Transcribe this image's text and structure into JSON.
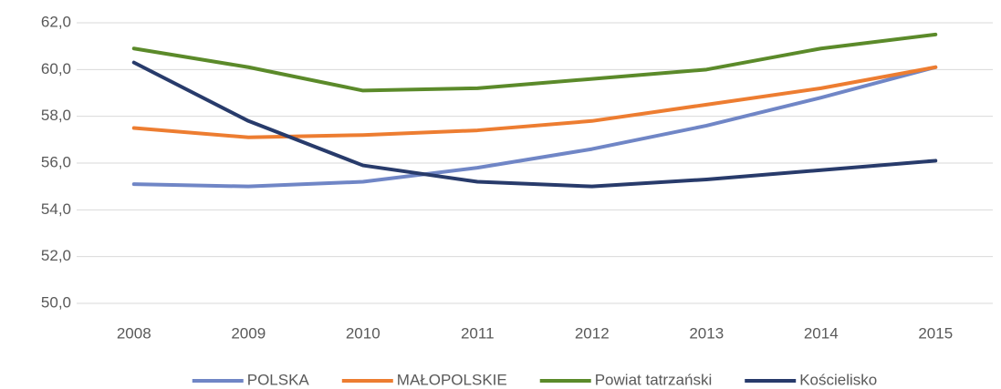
{
  "chart_data": {
    "type": "line",
    "categories": [
      "2008",
      "2009",
      "2010",
      "2011",
      "2012",
      "2013",
      "2014",
      "2015"
    ],
    "series": [
      {
        "name": "POLSKA",
        "color": "#7086c6",
        "values": [
          55.1,
          55.0,
          55.2,
          55.8,
          56.6,
          57.6,
          58.8,
          60.1
        ]
      },
      {
        "name": "MAŁOPOLSKIE",
        "color": "#ed7d31",
        "values": [
          57.5,
          57.1,
          57.2,
          57.4,
          57.8,
          58.5,
          59.2,
          60.1
        ]
      },
      {
        "name": "Powiat tatrzański",
        "color": "#5b8a2a",
        "values": [
          60.9,
          60.1,
          59.1,
          59.2,
          59.6,
          60.0,
          60.9,
          61.5
        ]
      },
      {
        "name": "Kościelisko",
        "color": "#283b6b",
        "values": [
          60.3,
          57.8,
          55.9,
          55.2,
          55.0,
          55.3,
          55.7,
          56.1
        ]
      }
    ],
    "ylim": [
      50,
      62
    ],
    "yticks": [
      {
        "value": 50,
        "label": "50,0"
      },
      {
        "value": 52,
        "label": "52,0"
      },
      {
        "value": 54,
        "label": "54,0"
      },
      {
        "value": 56,
        "label": "56,0"
      },
      {
        "value": 58,
        "label": "58,0"
      },
      {
        "value": 60,
        "label": "60,0"
      },
      {
        "value": 62,
        "label": "62,0"
      }
    ],
    "grid": true,
    "legend": "bottom"
  }
}
